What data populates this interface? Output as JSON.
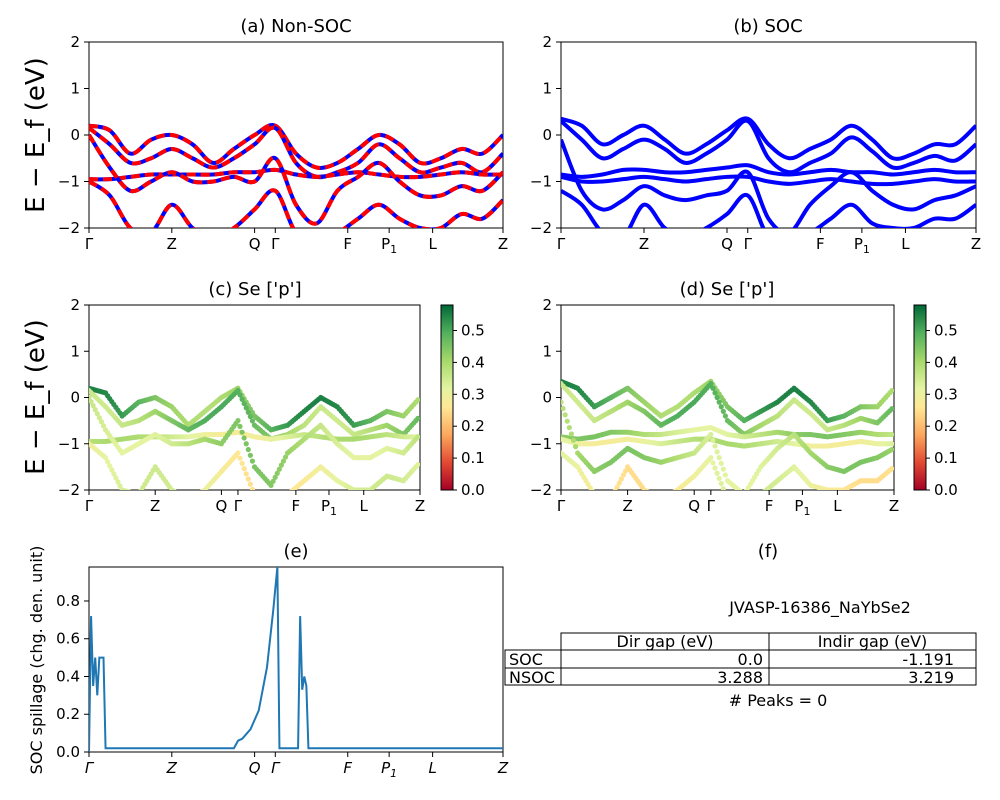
{
  "figure": {
    "ylabel_main_html": "E − E_f (eV)",
    "material_label": "JVASP-16386_NaYbSe2",
    "peaks_text": "# Peaks = 0",
    "panel_f_title": "(f)"
  },
  "kpath_labels": [
    "Γ",
    "Z",
    "Q",
    "Γ",
    "F",
    "P",
    "L",
    "Z"
  ],
  "kpath_positions": [
    0,
    0.2,
    0.4,
    0.45,
    0.625,
    0.725,
    0.83,
    1.0
  ],
  "kpath_subscripts": [
    "",
    "",
    "",
    "",
    "",
    "1",
    "",
    ""
  ],
  "gap_table": {
    "headers": [
      "Dir gap (eV)",
      "Indir gap (eV)"
    ],
    "rows": [
      {
        "label": "SOC",
        "dir": "0.0",
        "indir": "-1.191"
      },
      {
        "label": "NSOC",
        "dir": "3.288",
        "indir": "3.219"
      }
    ]
  },
  "colorbar": {
    "ticks": [
      "0.0",
      "0.1",
      "0.2",
      "0.3",
      "0.4",
      "0.5"
    ],
    "range": [
      0,
      0.58
    ],
    "colormap": "RdYlGn"
  },
  "chart_data": [
    {
      "id": "a",
      "type": "line",
      "title": "(a) Non-SOC",
      "ylabel": "E − E_f (eV)",
      "ylim": [
        -2,
        2
      ],
      "yticks": [
        "2",
        "1",
        "0",
        "−1",
        "−2"
      ],
      "colors": {
        "nsoc": "#ff0000",
        "soc": "#0000ff"
      },
      "bands": [
        {
          "name": "b1",
          "x": [
            0,
            0.05,
            0.1,
            0.15,
            0.2,
            0.25,
            0.3,
            0.35,
            0.4,
            0.45,
            0.5,
            0.55,
            0.6,
            0.65,
            0.7,
            0.75,
            0.8,
            0.85,
            0.9,
            0.95,
            1.0
          ],
          "y": [
            0.2,
            0.1,
            -0.4,
            -0.1,
            0,
            -0.2,
            -0.6,
            -0.3,
            0,
            0.2,
            -0.4,
            -0.7,
            -0.6,
            -0.3,
            0,
            -0.2,
            -0.6,
            -0.5,
            -0.3,
            -0.4,
            0
          ]
        },
        {
          "name": "b2",
          "x": [
            0,
            0.05,
            0.1,
            0.15,
            0.2,
            0.25,
            0.3,
            0.35,
            0.4,
            0.45,
            0.5,
            0.55,
            0.6,
            0.65,
            0.7,
            0.75,
            0.8,
            0.85,
            0.9,
            0.95,
            1.0
          ],
          "y": [
            0.15,
            -0.2,
            -0.6,
            -0.5,
            -0.3,
            -0.5,
            -0.7,
            -0.5,
            -0.2,
            0.15,
            -0.6,
            -0.9,
            -0.8,
            -0.6,
            -0.2,
            -0.5,
            -0.8,
            -0.7,
            -0.6,
            -0.8,
            -0.4
          ]
        },
        {
          "name": "b3",
          "x": [
            0,
            0.05,
            0.1,
            0.15,
            0.2,
            0.25,
            0.3,
            0.35,
            0.4,
            0.45,
            0.5,
            0.55,
            0.6,
            0.65,
            0.7,
            0.75,
            0.8,
            0.85,
            0.9,
            0.95,
            1.0
          ],
          "y": [
            -0.95,
            -0.95,
            -0.9,
            -0.85,
            -0.85,
            -0.85,
            -0.85,
            -0.8,
            -0.8,
            -0.75,
            -0.85,
            -0.9,
            -0.85,
            -0.8,
            -0.85,
            -0.9,
            -0.9,
            -0.85,
            -0.8,
            -0.85,
            -0.85
          ]
        },
        {
          "name": "b4",
          "x": [
            0,
            0.05,
            0.1,
            0.15,
            0.2,
            0.25,
            0.3,
            0.35,
            0.4,
            0.45,
            0.5,
            0.55,
            0.6,
            0.65,
            0.7,
            0.75,
            0.8,
            0.85,
            0.9,
            0.95,
            1.0
          ],
          "y": [
            0,
            -0.7,
            -1.2,
            -1.0,
            -0.8,
            -1.0,
            -1.0,
            -0.9,
            -1.0,
            -0.5,
            -1.5,
            -1.9,
            -1.2,
            -0.9,
            -0.6,
            -1.0,
            -1.3,
            -1.3,
            -1.1,
            -1.2,
            -0.8
          ]
        },
        {
          "name": "b5",
          "x": [
            0,
            0.05,
            0.1,
            0.15,
            0.2,
            0.25,
            0.3,
            0.35,
            0.4,
            0.45,
            0.5,
            0.55,
            0.6,
            0.65,
            0.7,
            0.75,
            0.8,
            0.85,
            0.9,
            0.95,
            1.0
          ],
          "y": [
            -1.0,
            -1.3,
            -2.0,
            -2.1,
            -1.5,
            -2.0,
            -2.2,
            -2.0,
            -1.6,
            -1.2,
            -2.1,
            -2.2,
            -2.1,
            -1.8,
            -1.5,
            -1.8,
            -2.0,
            -2.0,
            -1.7,
            -1.8,
            -1.4
          ]
        }
      ]
    },
    {
      "id": "b",
      "type": "line",
      "title": "(b) SOC",
      "ylim": [
        -2,
        2
      ],
      "yticks": [
        "2",
        "1",
        "0",
        "−1",
        "−2"
      ],
      "colors": {
        "soc": "#0000ff"
      },
      "bands": [
        {
          "name": "b1",
          "x": [
            0,
            0.05,
            0.1,
            0.15,
            0.2,
            0.25,
            0.3,
            0.35,
            0.4,
            0.45,
            0.5,
            0.55,
            0.6,
            0.65,
            0.7,
            0.75,
            0.8,
            0.85,
            0.9,
            0.95,
            1.0
          ],
          "y": [
            0.35,
            0.2,
            -0.2,
            0,
            0.2,
            -0.1,
            -0.4,
            -0.2,
            0.1,
            0.35,
            -0.2,
            -0.5,
            -0.3,
            -0.1,
            0.2,
            -0.1,
            -0.5,
            -0.4,
            -0.2,
            -0.2,
            0.2
          ]
        },
        {
          "name": "b2",
          "x": [
            0,
            0.05,
            0.1,
            0.15,
            0.2,
            0.25,
            0.3,
            0.35,
            0.4,
            0.45,
            0.5,
            0.55,
            0.6,
            0.65,
            0.7,
            0.75,
            0.8,
            0.85,
            0.9,
            0.95,
            1.0
          ],
          "y": [
            0.3,
            -0.1,
            -0.5,
            -0.3,
            -0.1,
            -0.3,
            -0.6,
            -0.4,
            -0.1,
            0.3,
            -0.5,
            -0.8,
            -0.6,
            -0.4,
            -0.05,
            -0.35,
            -0.7,
            -0.6,
            -0.45,
            -0.55,
            -0.2
          ]
        },
        {
          "name": "b3",
          "x": [
            0,
            0.05,
            0.1,
            0.15,
            0.2,
            0.25,
            0.3,
            0.35,
            0.4,
            0.45,
            0.5,
            0.55,
            0.6,
            0.65,
            0.7,
            0.75,
            0.8,
            0.85,
            0.9,
            0.95,
            1.0
          ],
          "y": [
            -0.85,
            -0.9,
            -0.85,
            -0.75,
            -0.75,
            -0.8,
            -0.8,
            -0.75,
            -0.7,
            -0.65,
            -0.8,
            -0.85,
            -0.8,
            -0.75,
            -0.8,
            -0.8,
            -0.85,
            -0.8,
            -0.75,
            -0.8,
            -0.8
          ]
        },
        {
          "name": "b4",
          "x": [
            0,
            0.05,
            0.1,
            0.15,
            0.2,
            0.25,
            0.3,
            0.35,
            0.4,
            0.45,
            0.5,
            0.55,
            0.6,
            0.65,
            0.7,
            0.75,
            0.8,
            0.85,
            0.9,
            0.95,
            1.0
          ],
          "y": [
            -0.9,
            -1.0,
            -1.0,
            -0.95,
            -0.9,
            -0.95,
            -1.0,
            -0.95,
            -0.9,
            -0.9,
            -1.0,
            -1.05,
            -1.0,
            -0.95,
            -1.0,
            -1.05,
            -1.05,
            -1.0,
            -0.95,
            -1.0,
            -1.0
          ]
        },
        {
          "name": "b5",
          "x": [
            0,
            0.05,
            0.1,
            0.15,
            0.2,
            0.25,
            0.3,
            0.35,
            0.4,
            0.45,
            0.5,
            0.55,
            0.6,
            0.65,
            0.7,
            0.75,
            0.8,
            0.85,
            0.9,
            0.95,
            1.0
          ],
          "y": [
            -0.1,
            -1.2,
            -1.6,
            -1.4,
            -1.1,
            -1.3,
            -1.4,
            -1.3,
            -1.2,
            -0.8,
            -1.8,
            -2.1,
            -1.5,
            -1.1,
            -0.8,
            -1.2,
            -1.5,
            -1.6,
            -1.4,
            -1.3,
            -1.1
          ]
        },
        {
          "name": "b6",
          "x": [
            0,
            0.05,
            0.1,
            0.15,
            0.2,
            0.25,
            0.3,
            0.35,
            0.4,
            0.45,
            0.5,
            0.55,
            0.6,
            0.65,
            0.7,
            0.75,
            0.8,
            0.85,
            0.9,
            0.95,
            1.0
          ],
          "y": [
            -1.2,
            -1.5,
            -2.1,
            -2.2,
            -1.5,
            -2.0,
            -2.2,
            -2.0,
            -1.7,
            -1.3,
            -2.2,
            -2.2,
            -2.1,
            -1.8,
            -1.5,
            -1.9,
            -2.0,
            -2.0,
            -1.8,
            -1.8,
            -1.5
          ]
        }
      ]
    },
    {
      "id": "c",
      "type": "scatter",
      "title": "(c)  Se ['p']",
      "ylim": [
        -2,
        2
      ],
      "yticks": [
        "2",
        "1",
        "0",
        "−1",
        "−2"
      ],
      "bands": [
        {
          "name": "b1",
          "weight": 0.55,
          "y": [
            0.2,
            0.1,
            -0.4,
            -0.1,
            0,
            -0.2,
            -0.6,
            -0.3,
            0,
            0.2,
            -0.4,
            -0.7,
            -0.6,
            -0.3,
            0,
            -0.2,
            -0.6,
            -0.5,
            -0.3,
            -0.4,
            0
          ]
        },
        {
          "name": "b2",
          "weight": 0.5,
          "y": [
            0.15,
            -0.2,
            -0.6,
            -0.5,
            -0.3,
            -0.5,
            -0.7,
            -0.5,
            -0.2,
            0.15,
            -0.6,
            -0.9,
            -0.8,
            -0.6,
            -0.2,
            -0.5,
            -0.8,
            -0.7,
            -0.6,
            -0.8,
            -0.4
          ]
        },
        {
          "name": "b3",
          "weight": 0.4,
          "y": [
            -0.95,
            -0.95,
            -0.9,
            -0.85,
            -0.85,
            -0.85,
            -0.85,
            -0.8,
            -0.8,
            -0.75,
            -0.85,
            -0.9,
            -0.85,
            -0.8,
            -0.85,
            -0.9,
            -0.9,
            -0.85,
            -0.8,
            -0.85,
            -0.85
          ]
        },
        {
          "name": "b4",
          "weight": 0.45,
          "y": [
            0,
            -0.7,
            -1.2,
            -1.0,
            -0.8,
            -1.0,
            -1.0,
            -0.9,
            -1.0,
            -0.5,
            -1.5,
            -1.9,
            -1.2,
            -0.9,
            -0.6,
            -1.0,
            -1.3,
            -1.3,
            -1.1,
            -1.2,
            -0.8
          ]
        },
        {
          "name": "b5",
          "weight": 0.35,
          "y": [
            -1.0,
            -1.3,
            -2.0,
            -2.1,
            -1.5,
            -2.0,
            -2.2,
            -2.0,
            -1.6,
            -1.2,
            -2.1,
            -2.2,
            -2.1,
            -1.8,
            -1.5,
            -1.8,
            -2.0,
            -2.0,
            -1.7,
            -1.8,
            -1.4
          ]
        }
      ]
    },
    {
      "id": "d",
      "type": "scatter",
      "title": "(d) Se ['p']",
      "ylim": [
        -2,
        2
      ],
      "yticks": [
        "2",
        "1",
        "0",
        "−1",
        "−2"
      ],
      "bands": [
        {
          "name": "b1",
          "weight": 0.55,
          "y": [
            0.35,
            0.2,
            -0.2,
            0,
            0.2,
            -0.1,
            -0.4,
            -0.2,
            0.1,
            0.35,
            -0.2,
            -0.5,
            -0.3,
            -0.1,
            0.2,
            -0.1,
            -0.5,
            -0.4,
            -0.2,
            -0.2,
            0.2
          ]
        },
        {
          "name": "b2",
          "weight": 0.5,
          "y": [
            0.3,
            -0.1,
            -0.5,
            -0.3,
            -0.1,
            -0.3,
            -0.6,
            -0.4,
            -0.1,
            0.3,
            -0.5,
            -0.8,
            -0.6,
            -0.4,
            -0.05,
            -0.35,
            -0.7,
            -0.6,
            -0.45,
            -0.55,
            -0.2
          ]
        },
        {
          "name": "b3",
          "weight": 0.45,
          "y": [
            -0.85,
            -0.9,
            -0.85,
            -0.75,
            -0.75,
            -0.8,
            -0.8,
            -0.75,
            -0.7,
            -0.65,
            -0.8,
            -0.85,
            -0.8,
            -0.75,
            -0.8,
            -0.8,
            -0.85,
            -0.8,
            -0.75,
            -0.8,
            -0.8
          ]
        },
        {
          "name": "b4",
          "weight": 0.4,
          "y": [
            -0.9,
            -1.0,
            -1.0,
            -0.95,
            -0.9,
            -0.95,
            -1.0,
            -0.95,
            -0.9,
            -0.9,
            -1.0,
            -1.05,
            -1.0,
            -0.95,
            -1.0,
            -1.05,
            -1.05,
            -1.0,
            -0.95,
            -1.0,
            -1.0
          ]
        },
        {
          "name": "b5",
          "weight": 0.45,
          "y": [
            -0.1,
            -1.2,
            -1.6,
            -1.4,
            -1.1,
            -1.3,
            -1.4,
            -1.3,
            -1.2,
            -0.8,
            -1.8,
            -2.1,
            -1.5,
            -1.1,
            -0.8,
            -1.2,
            -1.5,
            -1.6,
            -1.4,
            -1.3,
            -1.1
          ]
        },
        {
          "name": "b6",
          "weight": 0.35,
          "y": [
            -1.2,
            -1.5,
            -2.1,
            -2.2,
            -1.5,
            -2.0,
            -2.2,
            -2.0,
            -1.7,
            -1.3,
            -2.2,
            -2.2,
            -2.1,
            -1.8,
            -1.5,
            -1.9,
            -2.0,
            -2.0,
            -1.8,
            -1.8,
            -1.5
          ]
        }
      ]
    },
    {
      "id": "e",
      "type": "line",
      "title": "(e)",
      "ylabel": "SOC spillage (chg. den. unit)",
      "ylim": [
        0,
        0.98
      ],
      "yticks": [
        "0.0",
        "0.2",
        "0.4",
        "0.6",
        "0.8"
      ],
      "ytick_values": [
        0,
        0.2,
        0.4,
        0.6,
        0.8
      ],
      "x": [
        0,
        0.005,
        0.01,
        0.015,
        0.02,
        0.025,
        0.03,
        0.035,
        0.04,
        0.045,
        0.05,
        0.06,
        0.1,
        0.2,
        0.3,
        0.35,
        0.36,
        0.37,
        0.39,
        0.41,
        0.43,
        0.445,
        0.455,
        0.46,
        0.5,
        0.505,
        0.51,
        0.515,
        0.52,
        0.525,
        0.53,
        0.535,
        0.545,
        0.6,
        0.7,
        0.8,
        0.9,
        1.0
      ],
      "y": [
        0.0,
        0.72,
        0.35,
        0.5,
        0.3,
        0.5,
        0.5,
        0.5,
        0.02,
        0.02,
        0.02,
        0.02,
        0.02,
        0.02,
        0.02,
        0.02,
        0.06,
        0.07,
        0.12,
        0.22,
        0.45,
        0.75,
        0.98,
        0.02,
        0.02,
        0.02,
        0.72,
        0.33,
        0.4,
        0.35,
        0.02,
        0.02,
        0.02,
        0.02,
        0.02,
        0.02,
        0.02,
        0.02
      ],
      "color": "#1f77b4"
    }
  ]
}
